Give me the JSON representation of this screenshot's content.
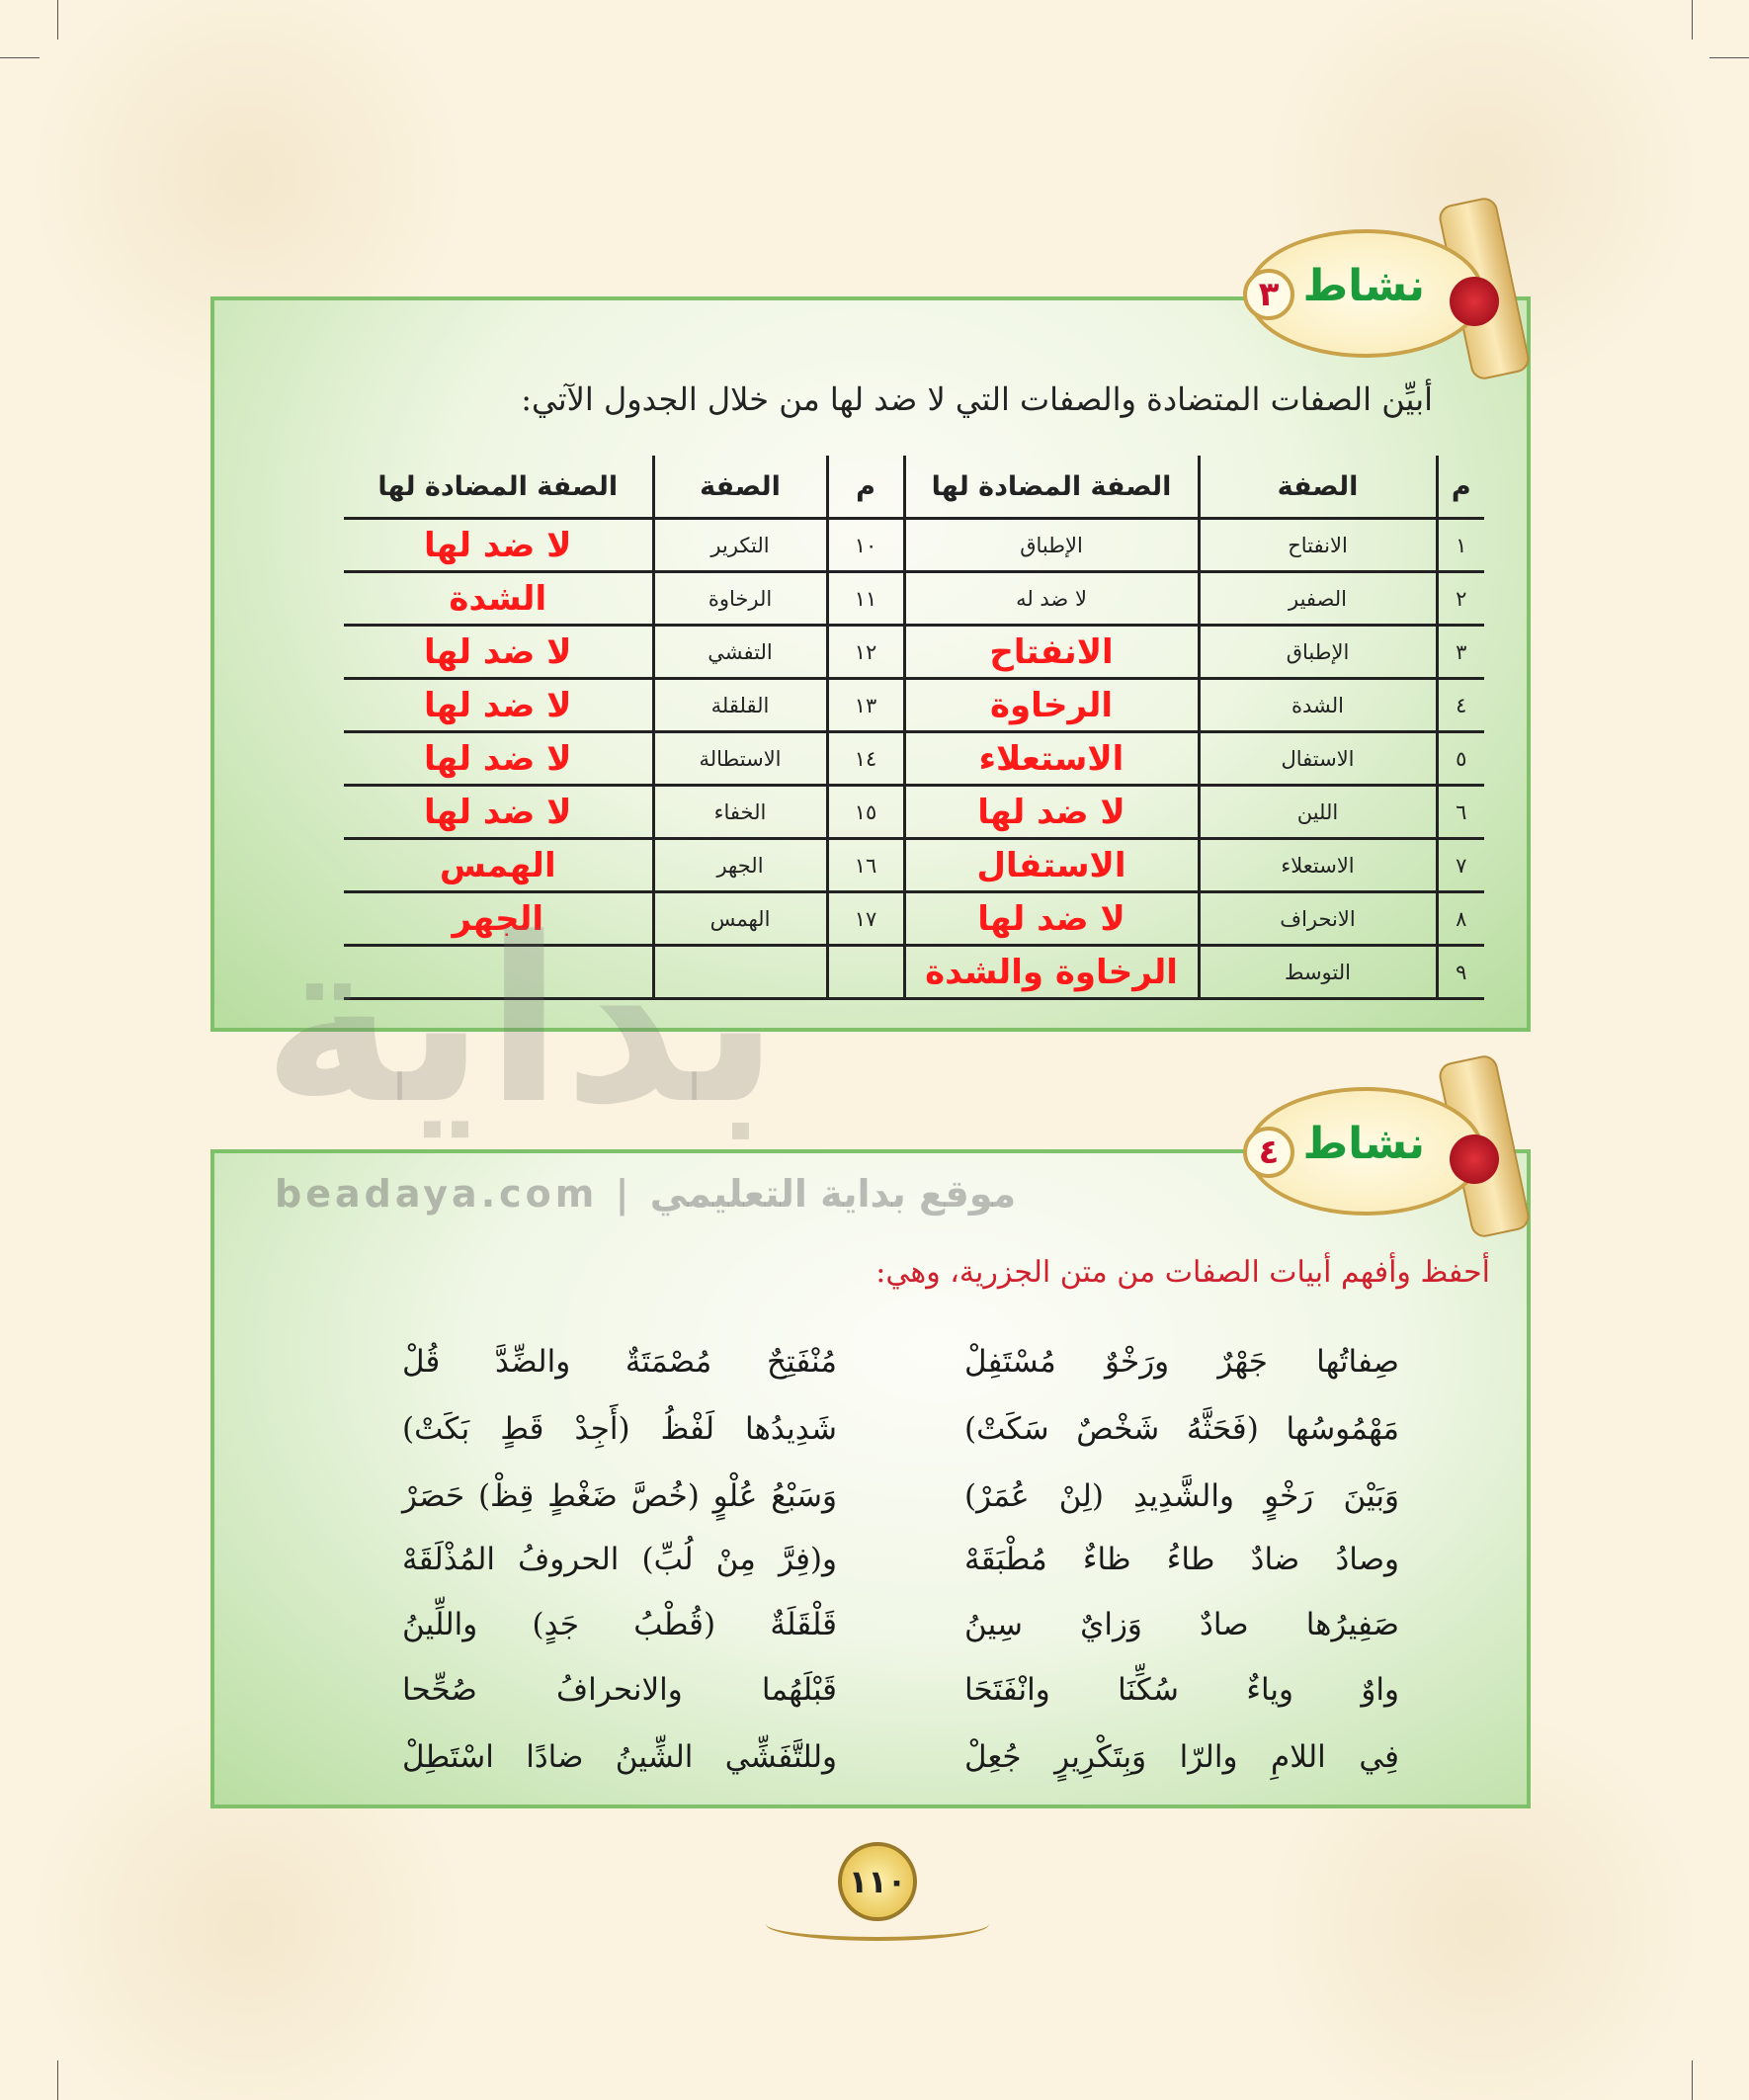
{
  "activity3": {
    "badge_word": "نشاط",
    "badge_number": "٣",
    "instruction": "أبيِّن الصفات المتضادة والصفات التي لا ضد لها من خلال الجدول الآتي:",
    "headers": {
      "num": "م",
      "trait": "الصفة",
      "opposite": "الصفة المضادة لها"
    },
    "rows": [
      {
        "r_num": "١",
        "r_trait": "الانفتاح",
        "r_opp": "الإطباق",
        "r_opp_answer": false,
        "l_num": "١٠",
        "l_trait": "التكرير",
        "l_opp": "لا ضد لها"
      },
      {
        "r_num": "٢",
        "r_trait": "الصفير",
        "r_opp": "لا ضد له",
        "r_opp_answer": false,
        "l_num": "١١",
        "l_trait": "الرخاوة",
        "l_opp": "الشدة"
      },
      {
        "r_num": "٣",
        "r_trait": "الإطباق",
        "r_opp": "الانفتاح",
        "r_opp_answer": true,
        "l_num": "١٢",
        "l_trait": "التفشي",
        "l_opp": "لا ضد لها"
      },
      {
        "r_num": "٤",
        "r_trait": "الشدة",
        "r_opp": "الرخاوة",
        "r_opp_answer": true,
        "l_num": "١٣",
        "l_trait": "القلقلة",
        "l_opp": "لا ضد لها"
      },
      {
        "r_num": "٥",
        "r_trait": "الاستفال",
        "r_opp": "الاستعلاء",
        "r_opp_answer": true,
        "l_num": "١٤",
        "l_trait": "الاستطالة",
        "l_opp": "لا ضد لها"
      },
      {
        "r_num": "٦",
        "r_trait": "اللين",
        "r_opp": "لا ضد لها",
        "r_opp_answer": true,
        "l_num": "١٥",
        "l_trait": "الخفاء",
        "l_opp": "لا ضد لها"
      },
      {
        "r_num": "٧",
        "r_trait": "الاستعلاء",
        "r_opp": "الاستفال",
        "r_opp_answer": true,
        "l_num": "١٦",
        "l_trait": "الجهر",
        "l_opp": "الهمس"
      },
      {
        "r_num": "٨",
        "r_trait": "الانحراف",
        "r_opp": "لا ضد لها",
        "r_opp_answer": true,
        "l_num": "١٧",
        "l_trait": "الهمس",
        "l_opp": "الجهر"
      },
      {
        "r_num": "٩",
        "r_trait": "التوسط",
        "r_opp": "الرخاوة والشدة",
        "r_opp_answer": true,
        "l_num": "",
        "l_trait": "",
        "l_opp": ""
      }
    ]
  },
  "watermark": {
    "logo": "بداية",
    "site": "beadaya.com",
    "separator": "|",
    "tagline": "موقع بداية التعليمي"
  },
  "activity4": {
    "badge_word": "نشاط",
    "badge_number": "٤",
    "instruction": "أحفظ وأفهم أبيات الصفات من متن الجزرية، وهي:",
    "verses": [
      {
        "right": "صِفاتُها جَهْرٌ ورَخْوٌ مُسْتَفِلْ",
        "left": "مُنْفَتِحٌ مُصْمَتَةٌ والضِّدَّ قُلْ"
      },
      {
        "right": "مَهْمُوسُها (فَحَثَّهُ شَخْصٌ سَكَتْ)",
        "left": "شَدِيدُها لَفْظُ (أَجِدْ قَطٍ بَكَتْ)"
      },
      {
        "right": "وَبَيْنَ رَخْوٍ والشَّدِيدِ (لِنْ عُمَرْ)",
        "left": "وَسَبْعُ عُلْوٍ (خُصَّ ضَغْطٍ قِظْ) حَصَرْ"
      },
      {
        "right": "وصادُ ضادٌ طاءُ ظاءٌ مُطْبَقَهْ",
        "left": "و(فِرَّ مِنْ لُبِّ) الحروفُ المُذْلَقَهْ"
      },
      {
        "right": "صَفِيرُها صادٌ وَزايٌ سِينُ",
        "left": "قَلْقَلَةٌ (قُطْبُ جَدٍ) واللِّينُ"
      },
      {
        "right": "واوٌ وياءٌ سُكِّنَا وانْفَتَحَا",
        "left": "قَبْلَهُما والانحرافُ صُحِّحا"
      },
      {
        "right": "فِي اللامِ والرّا وَبِتَكْرِيرٍ جُعِلْ",
        "left": "وللتَّفَشِّي الشِّينُ ضادًا اسْتَطِلْ"
      }
    ]
  },
  "page_number": "١١٠",
  "colors": {
    "answer_red": "#ff1a1a",
    "badge_green": "#1a9a3a",
    "panel_border": "#7fc06a",
    "instruction_red": "#d0202e"
  }
}
